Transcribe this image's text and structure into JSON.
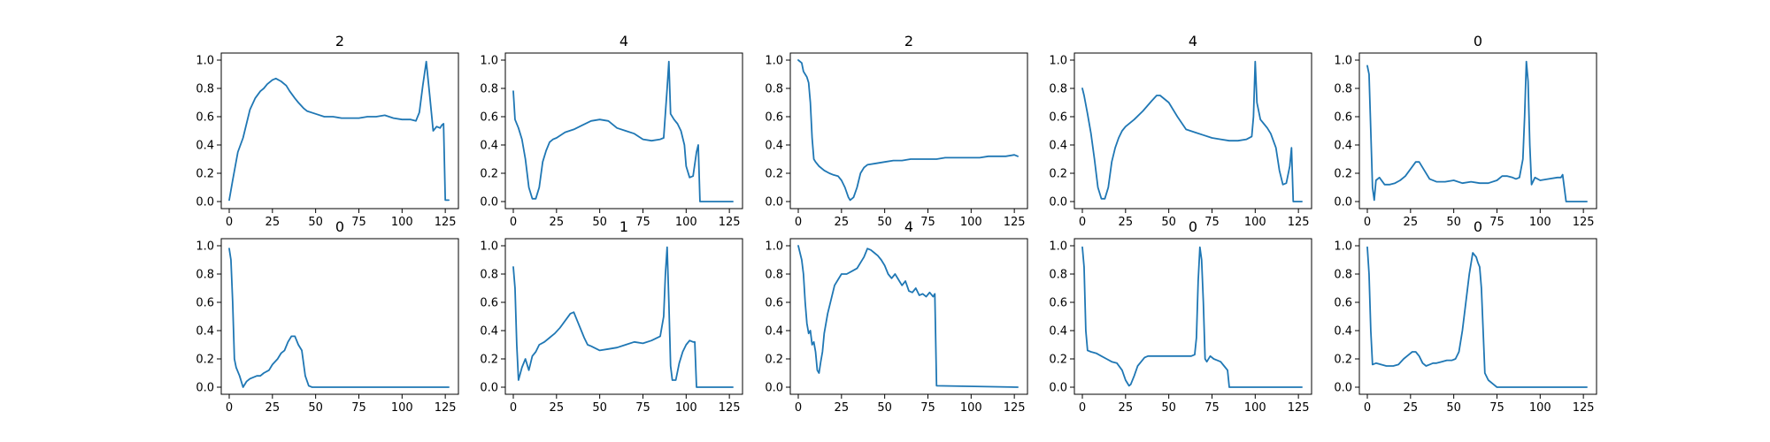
{
  "colors": {
    "series": "#1f77b4",
    "axes": "#000000",
    "background": "#ffffff"
  },
  "chart_data": [
    {
      "type": "line",
      "title": "2",
      "xlim": [
        0,
        128
      ],
      "ylim": [
        0,
        1
      ],
      "xticks": [
        0,
        25,
        50,
        75,
        100,
        125
      ],
      "yticks": [
        0.0,
        0.2,
        0.4,
        0.6,
        0.8,
        1.0
      ],
      "x": [
        0,
        2,
        5,
        8,
        10,
        12,
        15,
        18,
        20,
        22,
        25,
        27,
        30,
        33,
        35,
        38,
        40,
        43,
        45,
        50,
        55,
        60,
        65,
        70,
        75,
        80,
        85,
        90,
        95,
        100,
        105,
        108,
        110,
        112,
        114,
        116,
        118,
        120,
        122,
        123,
        124,
        125,
        127
      ],
      "series": [
        {
          "values": [
            0.01,
            0.15,
            0.35,
            0.45,
            0.55,
            0.65,
            0.73,
            0.78,
            0.8,
            0.83,
            0.86,
            0.87,
            0.85,
            0.82,
            0.78,
            0.73,
            0.7,
            0.66,
            0.64,
            0.62,
            0.6,
            0.6,
            0.59,
            0.59,
            0.59,
            0.6,
            0.6,
            0.61,
            0.59,
            0.58,
            0.58,
            0.57,
            0.63,
            0.82,
            0.99,
            0.75,
            0.5,
            0.53,
            0.52,
            0.54,
            0.55,
            0.01,
            0.01
          ]
        }
      ]
    },
    {
      "type": "line",
      "title": "4",
      "xlim": [
        0,
        128
      ],
      "ylim": [
        0,
        1
      ],
      "xticks": [
        0,
        25,
        50,
        75,
        100,
        125
      ],
      "yticks": [
        0.0,
        0.2,
        0.4,
        0.6,
        0.8,
        1.0
      ],
      "x": [
        0,
        1,
        3,
        5,
        7,
        9,
        11,
        13,
        15,
        17,
        19,
        21,
        23,
        25,
        30,
        35,
        40,
        45,
        50,
        55,
        60,
        65,
        70,
        75,
        80,
        85,
        87,
        89,
        90,
        91,
        93,
        95,
        97,
        99,
        100,
        102,
        104,
        106,
        107,
        108,
        120,
        127
      ],
      "series": [
        {
          "values": [
            0.78,
            0.58,
            0.52,
            0.44,
            0.3,
            0.1,
            0.02,
            0.02,
            0.1,
            0.28,
            0.36,
            0.42,
            0.44,
            0.45,
            0.49,
            0.51,
            0.54,
            0.57,
            0.58,
            0.57,
            0.52,
            0.5,
            0.48,
            0.44,
            0.43,
            0.44,
            0.45,
            0.8,
            0.99,
            0.62,
            0.58,
            0.55,
            0.5,
            0.4,
            0.25,
            0.17,
            0.18,
            0.35,
            0.4,
            0.0,
            0.0,
            0.0
          ]
        }
      ]
    },
    {
      "type": "line",
      "title": "2",
      "xlim": [
        0,
        128
      ],
      "ylim": [
        0,
        1
      ],
      "xticks": [
        0,
        25,
        50,
        75,
        100,
        125
      ],
      "yticks": [
        0.0,
        0.2,
        0.4,
        0.6,
        0.8,
        1.0
      ],
      "x": [
        0,
        2,
        3,
        4,
        5,
        6,
        7,
        8,
        9,
        10,
        12,
        15,
        18,
        20,
        23,
        25,
        27,
        29,
        30,
        32,
        34,
        36,
        38,
        40,
        45,
        50,
        55,
        60,
        65,
        70,
        75,
        80,
        85,
        90,
        95,
        100,
        105,
        110,
        115,
        120,
        125,
        127
      ],
      "series": [
        {
          "values": [
            1.0,
            0.98,
            0.92,
            0.9,
            0.88,
            0.84,
            0.7,
            0.45,
            0.3,
            0.28,
            0.25,
            0.22,
            0.2,
            0.19,
            0.18,
            0.15,
            0.1,
            0.03,
            0.01,
            0.03,
            0.1,
            0.2,
            0.24,
            0.26,
            0.27,
            0.28,
            0.29,
            0.29,
            0.3,
            0.3,
            0.3,
            0.3,
            0.31,
            0.31,
            0.31,
            0.31,
            0.31,
            0.32,
            0.32,
            0.32,
            0.33,
            0.32
          ]
        }
      ]
    },
    {
      "type": "line",
      "title": "4",
      "xlim": [
        0,
        128
      ],
      "ylim": [
        0,
        1
      ],
      "xticks": [
        0,
        25,
        50,
        75,
        100,
        125
      ],
      "yticks": [
        0.0,
        0.2,
        0.4,
        0.6,
        0.8,
        1.0
      ],
      "x": [
        0,
        1,
        3,
        5,
        7,
        9,
        11,
        13,
        15,
        17,
        19,
        21,
        23,
        25,
        30,
        35,
        40,
        43,
        45,
        50,
        55,
        60,
        65,
        70,
        75,
        80,
        85,
        90,
        95,
        98,
        99,
        100,
        101,
        103,
        105,
        107,
        109,
        112,
        114,
        116,
        118,
        120,
        121,
        122,
        127
      ],
      "series": [
        {
          "values": [
            0.8,
            0.75,
            0.62,
            0.48,
            0.3,
            0.1,
            0.02,
            0.02,
            0.1,
            0.28,
            0.38,
            0.45,
            0.5,
            0.53,
            0.58,
            0.64,
            0.71,
            0.75,
            0.75,
            0.7,
            0.6,
            0.51,
            0.49,
            0.47,
            0.45,
            0.44,
            0.43,
            0.43,
            0.44,
            0.46,
            0.6,
            0.99,
            0.7,
            0.58,
            0.55,
            0.52,
            0.48,
            0.38,
            0.22,
            0.12,
            0.13,
            0.25,
            0.38,
            0.0,
            0.0
          ]
        }
      ]
    },
    {
      "type": "line",
      "title": "0",
      "xlim": [
        0,
        128
      ],
      "ylim": [
        0,
        1
      ],
      "xticks": [
        0,
        25,
        50,
        75,
        100,
        125
      ],
      "yticks": [
        0.0,
        0.2,
        0.4,
        0.6,
        0.8,
        1.0
      ],
      "x": [
        0,
        1,
        2,
        3,
        4,
        5,
        7,
        10,
        13,
        16,
        19,
        22,
        25,
        28,
        30,
        33,
        36,
        40,
        45,
        50,
        55,
        60,
        65,
        70,
        75,
        78,
        81,
        84,
        86,
        88,
        90,
        91,
        92,
        93,
        94,
        95,
        97,
        100,
        105,
        110,
        112,
        113,
        115,
        120,
        127
      ],
      "series": [
        {
          "values": [
            0.96,
            0.9,
            0.5,
            0.1,
            0.01,
            0.15,
            0.17,
            0.12,
            0.12,
            0.13,
            0.15,
            0.18,
            0.23,
            0.28,
            0.28,
            0.22,
            0.16,
            0.14,
            0.14,
            0.15,
            0.13,
            0.14,
            0.13,
            0.13,
            0.15,
            0.18,
            0.18,
            0.17,
            0.16,
            0.17,
            0.3,
            0.6,
            0.99,
            0.85,
            0.4,
            0.12,
            0.17,
            0.15,
            0.16,
            0.17,
            0.17,
            0.19,
            0.0,
            0.0,
            0.0
          ]
        }
      ]
    },
    {
      "type": "line",
      "title": "0",
      "xlim": [
        0,
        128
      ],
      "ylim": [
        0,
        1
      ],
      "xticks": [
        0,
        25,
        50,
        75,
        100,
        125
      ],
      "yticks": [
        0.0,
        0.2,
        0.4,
        0.6,
        0.8,
        1.0
      ],
      "x": [
        0,
        1,
        2,
        3,
        4,
        6,
        8,
        10,
        12,
        14,
        16,
        18,
        20,
        23,
        25,
        28,
        30,
        32,
        34,
        36,
        38,
        40,
        42,
        44,
        46,
        48,
        127
      ],
      "series": [
        {
          "values": [
            0.98,
            0.9,
            0.6,
            0.2,
            0.14,
            0.08,
            0.0,
            0.04,
            0.06,
            0.07,
            0.08,
            0.08,
            0.1,
            0.12,
            0.16,
            0.2,
            0.24,
            0.26,
            0.32,
            0.36,
            0.36,
            0.3,
            0.26,
            0.08,
            0.01,
            0.0,
            0.0
          ]
        }
      ]
    },
    {
      "type": "line",
      "title": "1",
      "xlim": [
        0,
        128
      ],
      "ylim": [
        0,
        1
      ],
      "xticks": [
        0,
        25,
        50,
        75,
        100,
        125
      ],
      "yticks": [
        0.0,
        0.2,
        0.4,
        0.6,
        0.8,
        1.0
      ],
      "x": [
        0,
        1,
        2,
        3,
        5,
        7,
        9,
        11,
        13,
        15,
        18,
        21,
        24,
        27,
        30,
        33,
        35,
        37,
        39,
        41,
        43,
        45,
        50,
        55,
        60,
        65,
        70,
        75,
        80,
        85,
        87,
        88,
        89,
        90,
        91,
        92,
        94,
        96,
        98,
        100,
        102,
        104,
        105,
        106,
        127
      ],
      "series": [
        {
          "values": [
            0.85,
            0.7,
            0.3,
            0.05,
            0.14,
            0.2,
            0.12,
            0.22,
            0.25,
            0.3,
            0.32,
            0.35,
            0.38,
            0.42,
            0.47,
            0.52,
            0.53,
            0.47,
            0.41,
            0.35,
            0.3,
            0.29,
            0.26,
            0.27,
            0.28,
            0.3,
            0.32,
            0.31,
            0.33,
            0.36,
            0.5,
            0.8,
            0.99,
            0.6,
            0.15,
            0.05,
            0.05,
            0.17,
            0.25,
            0.3,
            0.33,
            0.32,
            0.32,
            0.0,
            0.0
          ]
        }
      ]
    },
    {
      "type": "line",
      "title": "4",
      "xlim": [
        0,
        128
      ],
      "ylim": [
        0,
        1
      ],
      "xticks": [
        0,
        25,
        50,
        75,
        100,
        125
      ],
      "yticks": [
        0.0,
        0.2,
        0.4,
        0.6,
        0.8,
        1.0
      ],
      "x": [
        0,
        2,
        3,
        4,
        5,
        6,
        7,
        8,
        9,
        10,
        11,
        12,
        13,
        14,
        15,
        17,
        19,
        21,
        23,
        25,
        28,
        31,
        34,
        36,
        38,
        40,
        42,
        44,
        46,
        48,
        50,
        52,
        54,
        56,
        58,
        60,
        62,
        64,
        66,
        68,
        70,
        72,
        74,
        76,
        78,
        79,
        80,
        127
      ],
      "series": [
        {
          "values": [
            1.0,
            0.9,
            0.8,
            0.6,
            0.45,
            0.38,
            0.4,
            0.3,
            0.32,
            0.25,
            0.12,
            0.1,
            0.18,
            0.25,
            0.38,
            0.52,
            0.62,
            0.72,
            0.76,
            0.8,
            0.8,
            0.82,
            0.84,
            0.88,
            0.92,
            0.98,
            0.97,
            0.95,
            0.93,
            0.9,
            0.86,
            0.8,
            0.77,
            0.8,
            0.76,
            0.72,
            0.75,
            0.68,
            0.67,
            0.7,
            0.65,
            0.66,
            0.64,
            0.67,
            0.64,
            0.66,
            0.01,
            0.0
          ]
        }
      ]
    },
    {
      "type": "line",
      "title": "0",
      "xlim": [
        0,
        128
      ],
      "ylim": [
        0,
        1
      ],
      "xticks": [
        0,
        25,
        50,
        75,
        100,
        125
      ],
      "yticks": [
        0.0,
        0.2,
        0.4,
        0.6,
        0.8,
        1.0
      ],
      "x": [
        0,
        1,
        2,
        3,
        5,
        8,
        11,
        14,
        17,
        20,
        23,
        25,
        27,
        28,
        30,
        32,
        34,
        36,
        38,
        40,
        45,
        50,
        55,
        60,
        63,
        65,
        66,
        67,
        68,
        69,
        70,
        71,
        72,
        74,
        76,
        78,
        80,
        82,
        84,
        85,
        127
      ],
      "series": [
        {
          "values": [
            0.99,
            0.85,
            0.4,
            0.26,
            0.25,
            0.24,
            0.22,
            0.2,
            0.18,
            0.17,
            0.12,
            0.05,
            0.01,
            0.02,
            0.08,
            0.15,
            0.18,
            0.21,
            0.22,
            0.22,
            0.22,
            0.22,
            0.22,
            0.22,
            0.22,
            0.23,
            0.35,
            0.75,
            0.99,
            0.9,
            0.6,
            0.2,
            0.18,
            0.22,
            0.2,
            0.19,
            0.18,
            0.15,
            0.12,
            0.0,
            0.0
          ]
        }
      ]
    },
    {
      "type": "line",
      "title": "0",
      "xlim": [
        0,
        128
      ],
      "ylim": [
        0,
        1
      ],
      "xticks": [
        0,
        25,
        50,
        75,
        100,
        125
      ],
      "yticks": [
        0.0,
        0.2,
        0.4,
        0.6,
        0.8,
        1.0
      ],
      "x": [
        0,
        1,
        2,
        3,
        5,
        8,
        11,
        15,
        18,
        21,
        24,
        26,
        28,
        30,
        32,
        34,
        36,
        38,
        40,
        43,
        46,
        49,
        51,
        53,
        55,
        57,
        59,
        61,
        63,
        64,
        65,
        66,
        67,
        68,
        70,
        73,
        75,
        127
      ],
      "series": [
        {
          "values": [
            0.99,
            0.8,
            0.4,
            0.16,
            0.17,
            0.16,
            0.15,
            0.15,
            0.16,
            0.2,
            0.23,
            0.25,
            0.25,
            0.22,
            0.17,
            0.15,
            0.16,
            0.17,
            0.17,
            0.18,
            0.19,
            0.19,
            0.2,
            0.25,
            0.4,
            0.6,
            0.8,
            0.95,
            0.92,
            0.88,
            0.85,
            0.7,
            0.4,
            0.1,
            0.05,
            0.02,
            0.0,
            0.0
          ]
        }
      ]
    }
  ]
}
